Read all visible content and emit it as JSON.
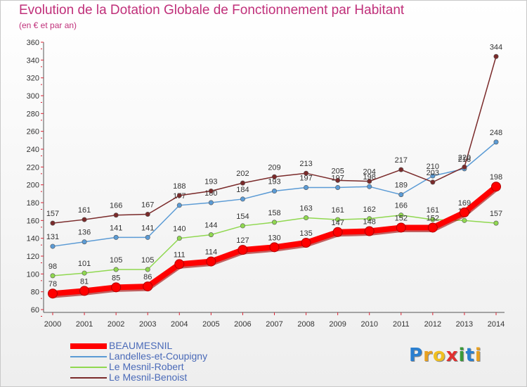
{
  "header": {
    "title": "Evolution de la Dotation Globale de Fonctionnement par Habitant",
    "subtitle": "(en € et par an)"
  },
  "brand": {
    "logo_letters": [
      "P",
      "r",
      "o",
      "x",
      "i",
      "t",
      "i"
    ],
    "logo_colors": [
      "#2a7fd0",
      "#e8a020",
      "#f0c020",
      "#e03030",
      "#3a9a3a",
      "#2a7fd0",
      "#e8a020"
    ]
  },
  "chart_data": {
    "type": "line",
    "title": "Evolution de la Dotation Globale de Fonctionnement par Habitant",
    "subtitle": "(en € et par an)",
    "xlabel": "",
    "ylabel": "",
    "x": [
      2000,
      2001,
      2002,
      2003,
      2004,
      2005,
      2006,
      2007,
      2008,
      2009,
      2010,
      2011,
      2012,
      2013,
      2014
    ],
    "ylim": [
      60,
      360
    ],
    "ytick_step": 20,
    "grid": false,
    "legend_position": "bottom-left",
    "series": [
      {
        "name": "BEAUMESNIL",
        "color": "#ff0000",
        "emphasis": true,
        "values": [
          78,
          81,
          85,
          86,
          111,
          114,
          127,
          130,
          135,
          147,
          148,
          152,
          152,
          169,
          198
        ]
      },
      {
        "name": "Landelles-et-Coupigny",
        "color": "#5b9bd5",
        "emphasis": false,
        "values": [
          131,
          136,
          141,
          141,
          177,
          180,
          184,
          193,
          197,
          197,
          198,
          189,
          210,
          218,
          248
        ]
      },
      {
        "name": "Le Mesnil-Robert",
        "color": "#90d850",
        "emphasis": false,
        "values": [
          98,
          101,
          105,
          105,
          140,
          144,
          154,
          158,
          163,
          161,
          162,
          166,
          161,
          160,
          157
        ]
      },
      {
        "name": "Le Mesnil-Benoist",
        "color": "#7a2a2a",
        "emphasis": false,
        "values": [
          157,
          161,
          166,
          167,
          188,
          193,
          202,
          209,
          213,
          205,
          204,
          217,
          203,
          220,
          344
        ]
      }
    ]
  }
}
